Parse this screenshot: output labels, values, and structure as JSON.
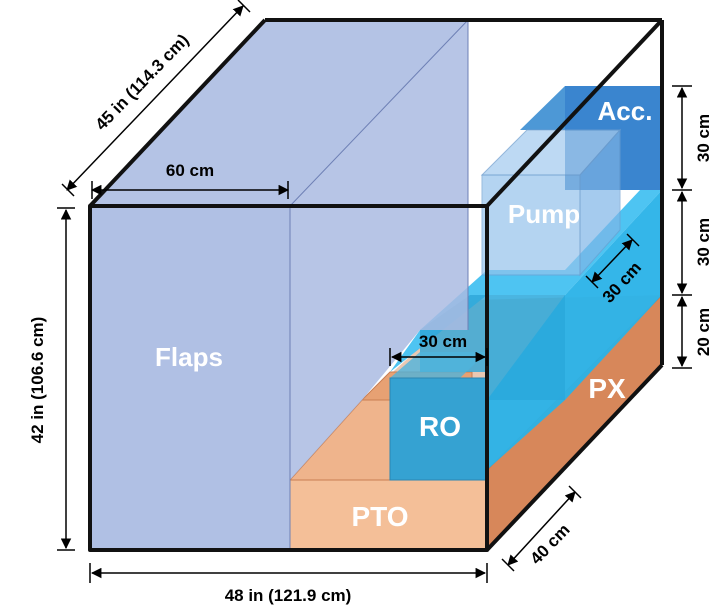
{
  "components": {
    "flaps": "Flaps",
    "pump": "Pump",
    "accumulator": "Acc.",
    "ro": "RO",
    "pto": "PTO",
    "px": "PX"
  },
  "dimensions": {
    "depth_top": "45 in (114.3 cm)",
    "flaps_width": "60 cm",
    "height_left": "42 in (106.6 cm)",
    "width_bottom": "48 in (121.9 cm)",
    "ro_width": "30 cm",
    "pump_depth": "30 cm",
    "right_top": "30 cm",
    "right_middle": "30 cm",
    "right_bottom": "20 cm",
    "bottom_depth": "40 cm"
  },
  "colors": {
    "flaps": "#b0c0e4",
    "pto": "#f4bf98",
    "px": "#d8875a",
    "water": "#28b4ea",
    "ro": "#35a2d2",
    "accumulator": "#3a85cf",
    "outline": "#111111"
  }
}
